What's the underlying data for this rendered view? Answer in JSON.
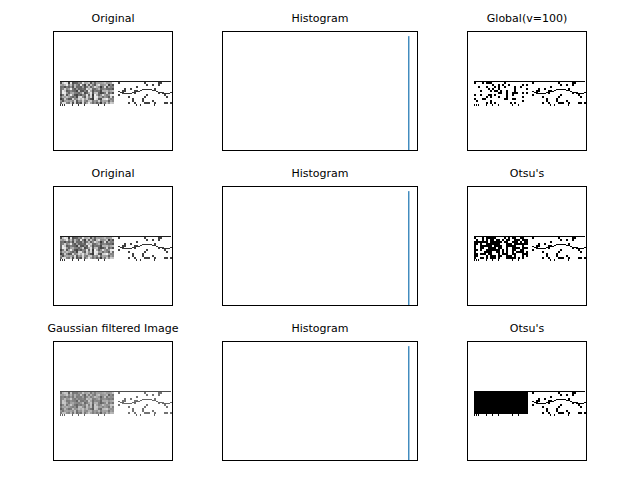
{
  "chart_data": [
    {
      "type": "image",
      "title": "Original",
      "tick_labels": false
    },
    {
      "type": "histogram",
      "title": "Histogram",
      "bins": [
        254,
        255
      ],
      "counts": [
        280000
      ],
      "xlim": [
        -12.75,
        267.75
      ],
      "ylim": [
        0,
        294000
      ],
      "xticks": [],
      "yticks": [],
      "color": "#1f77b4",
      "tick_labels": false
    },
    {
      "type": "image",
      "title": "Global(v=100)",
      "tick_labels": false
    },
    {
      "type": "image",
      "title": "Original",
      "tick_labels": false
    },
    {
      "type": "histogram",
      "title": "Histogram",
      "bins": [
        254,
        255
      ],
      "counts": [
        280000
      ],
      "xlim": [
        -12.75,
        267.75
      ],
      "ylim": [
        0,
        294000
      ],
      "xticks": [],
      "yticks": [],
      "color": "#1f77b4",
      "tick_labels": false
    },
    {
      "type": "image",
      "title": "Otsu's",
      "tick_labels": false
    },
    {
      "type": "image",
      "title": "Gaussian filtered Image",
      "tick_labels": false
    },
    {
      "type": "histogram",
      "title": "Histogram",
      "bins": [
        254,
        255
      ],
      "counts": [
        280000
      ],
      "xlim": [
        -12.75,
        267.75
      ],
      "ylim": [
        0,
        294000
      ],
      "xticks": [],
      "yticks": [],
      "color": "#1f77b4",
      "tick_labels": false
    },
    {
      "type": "image",
      "title": "Otsu's",
      "tick_labels": false
    }
  ]
}
